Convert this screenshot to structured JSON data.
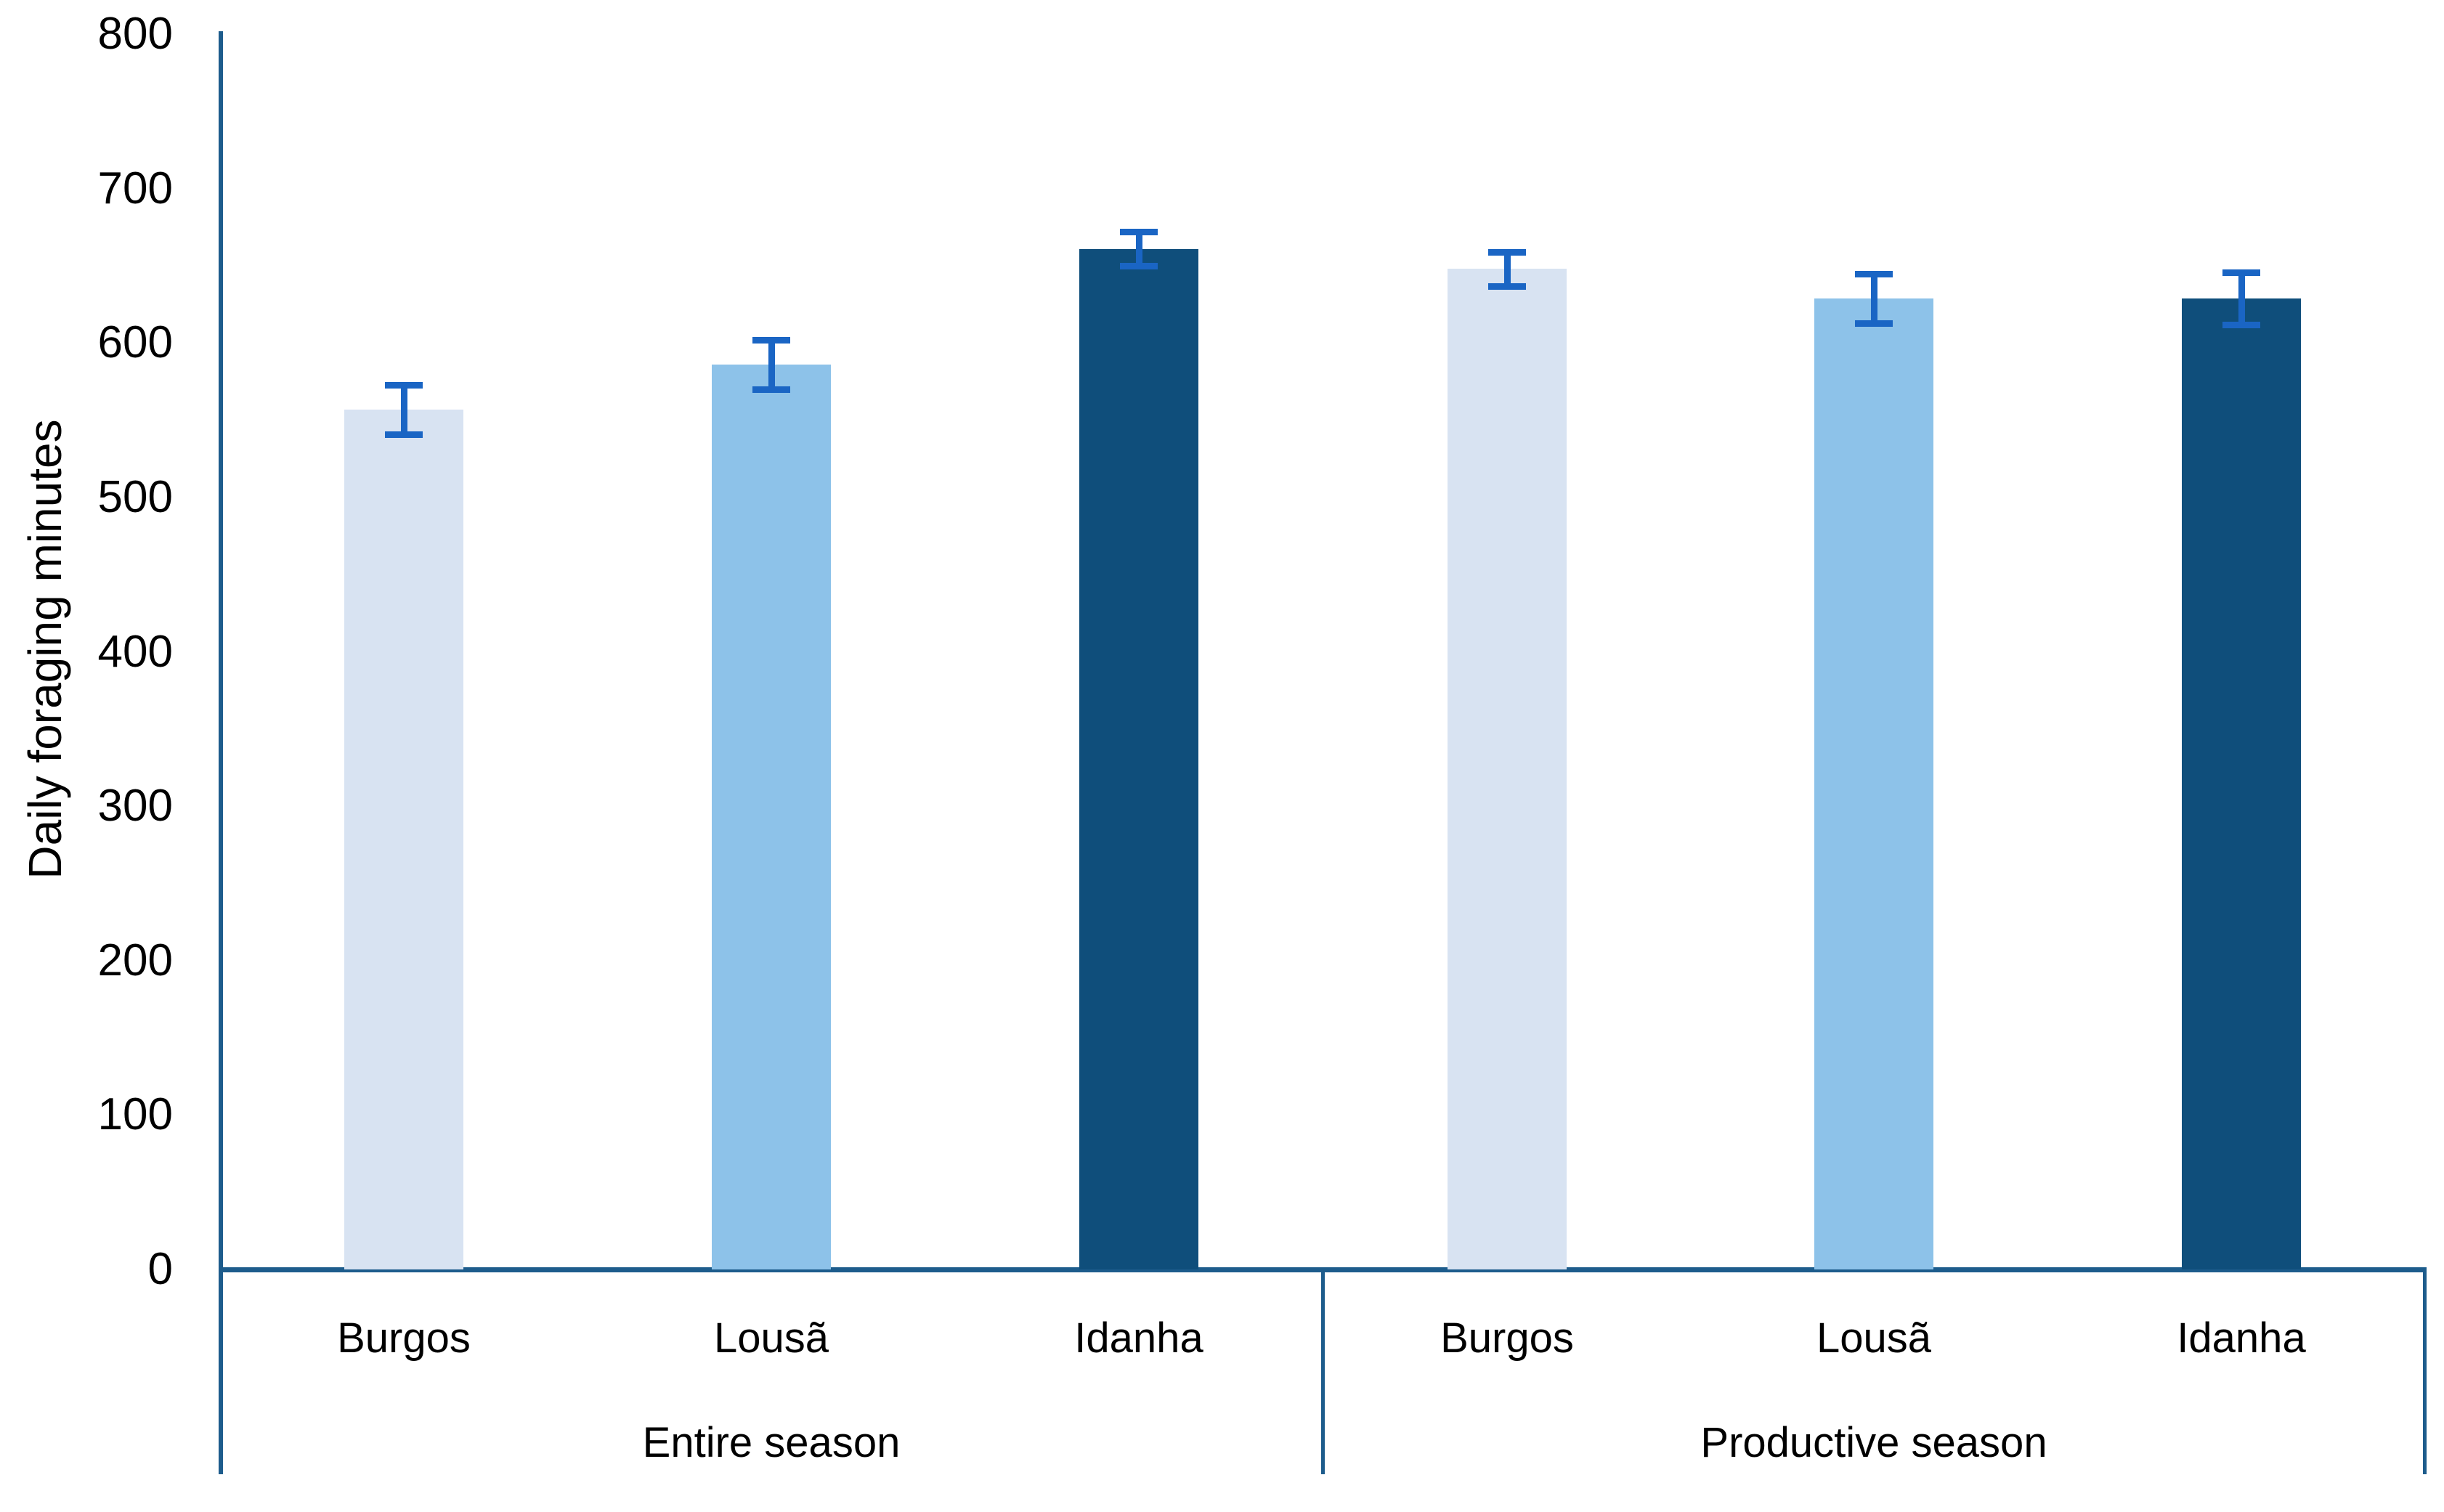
{
  "chart_data": {
    "type": "bar",
    "title": "",
    "ylabel": "Daily foraging minutes",
    "xlabel": "",
    "ylim": [
      0,
      800
    ],
    "ytick_step": 100,
    "ytick_labels": [
      "0",
      "100",
      "200",
      "300",
      "400",
      "500",
      "600",
      "700",
      "800"
    ],
    "grid": false,
    "legend": "none",
    "categories": [
      "Burgos",
      "Lousã",
      "Idanha"
    ],
    "groups": [
      {
        "label": "Entire season",
        "values": [
          557,
          586,
          661
        ],
        "errors": [
          16,
          16,
          11
        ]
      },
      {
        "label": "Productive season",
        "values": [
          648,
          629,
          629
        ],
        "errors": [
          11,
          16,
          17
        ]
      }
    ],
    "bar_colors": [
      "#D8E3F2",
      "#8DC2E9",
      "#0F4E7B"
    ],
    "error_bar_color": "#1A65C4",
    "axis_color": "#1D5C8C",
    "text_color": "#000000"
  }
}
